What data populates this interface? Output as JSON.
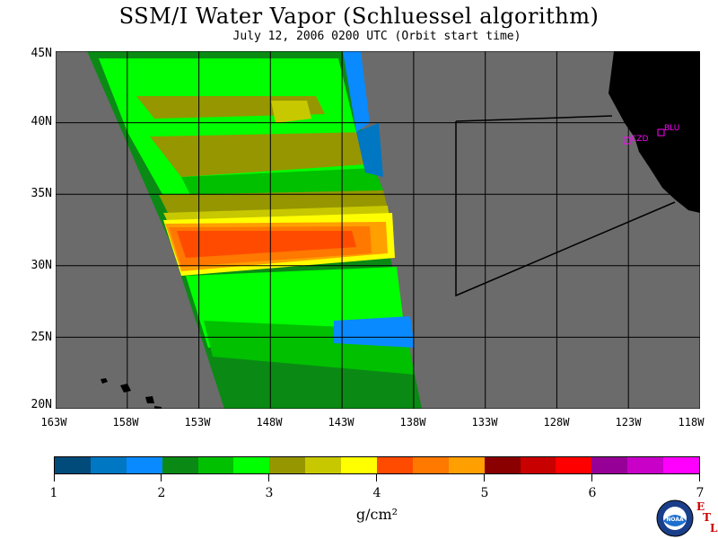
{
  "title": "SSM/I Water Vapor (Schluessel algorithm)",
  "subtitle": "July 12, 2006  0200 UTC  (Orbit start time)",
  "map": {
    "lat_labels": [
      "45N",
      "40N",
      "35N",
      "30N",
      "25N",
      "20N"
    ],
    "lon_labels": [
      "163W",
      "158W",
      "153W",
      "148W",
      "143W",
      "138W",
      "133W",
      "128W",
      "123W",
      "118W"
    ],
    "stations": [
      "CZD",
      "BLU"
    ],
    "colors": {
      "ocean": "#6b6b6b",
      "land": "#000000",
      "station": "#ff00ff"
    }
  },
  "colorbar": {
    "colors": [
      "#004b7a",
      "#0077c2",
      "#0a8aff",
      "#0a8a14",
      "#00c000",
      "#00ff00",
      "#969600",
      "#c8c800",
      "#ffff00",
      "#ff4b00",
      "#ff7800",
      "#ff9f00",
      "#8a0000",
      "#c80000",
      "#ff0000",
      "#960096",
      "#c800c8",
      "#ff00ff"
    ],
    "tick_labels": [
      "1",
      "2",
      "3",
      "4",
      "5",
      "6",
      "7"
    ],
    "unit": "g/cm²"
  },
  "logos": {
    "noaa": "NOAA",
    "etl_letters": [
      "E",
      "T",
      "L"
    ]
  }
}
